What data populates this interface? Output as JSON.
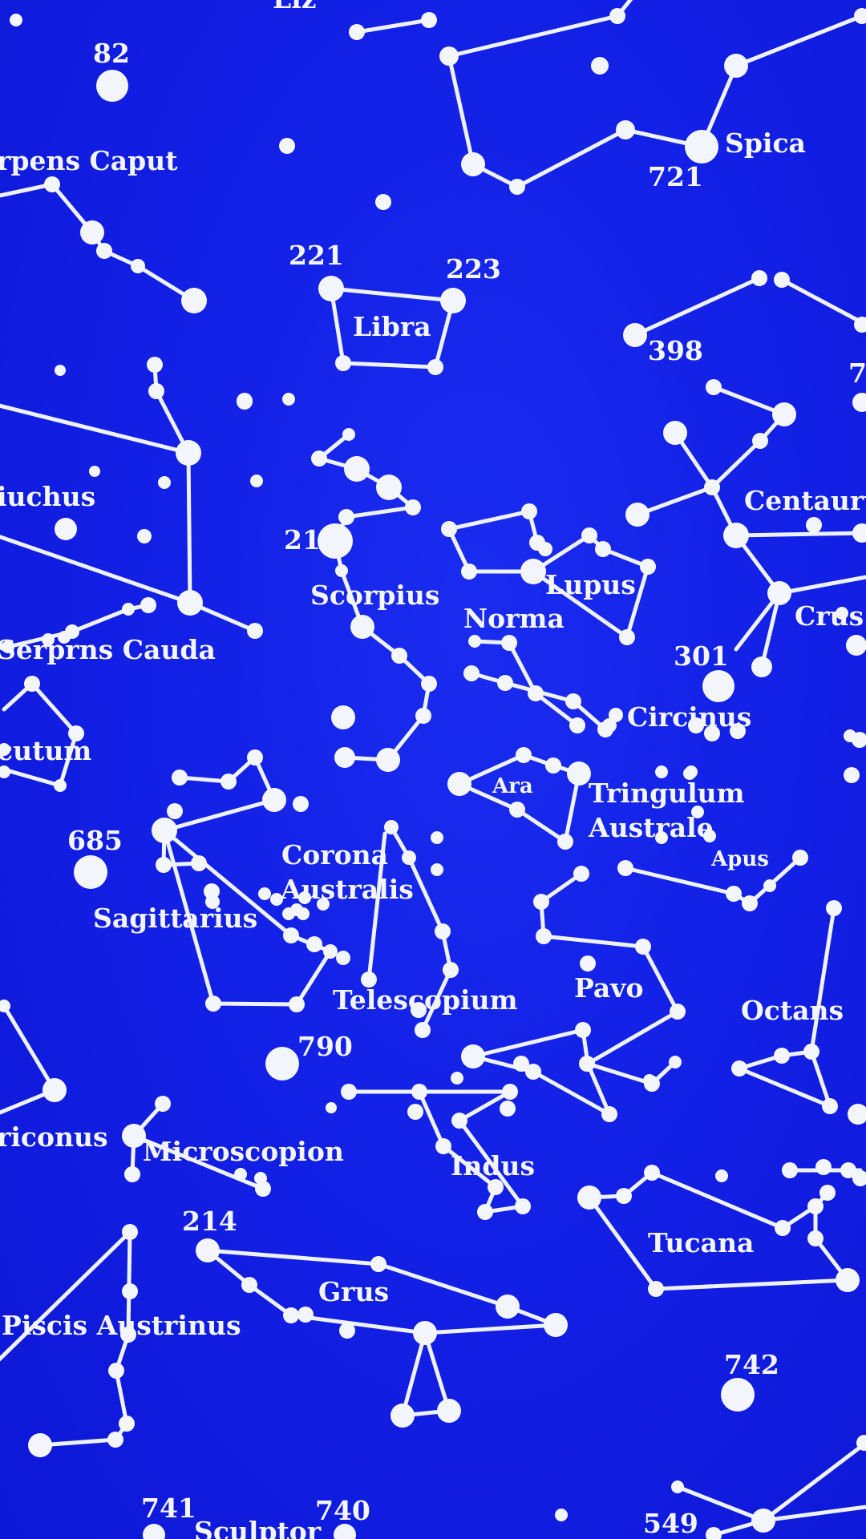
{
  "map": {
    "background_color": "#1320e6",
    "ink_color": "#f4f6ff",
    "constellation_labels": [
      {
        "id": "serpens-caput",
        "text": "rpens Caput"
      },
      {
        "id": "spica",
        "text": "Spica"
      },
      {
        "id": "libra",
        "text": "Libra"
      },
      {
        "id": "ophiuchus",
        "text": "iuchus"
      },
      {
        "id": "centaurus",
        "text": "Centauru"
      },
      {
        "id": "scorpius",
        "text": "Scorpius"
      },
      {
        "id": "lupus",
        "text": "Lupus"
      },
      {
        "id": "norma",
        "text": "Norma"
      },
      {
        "id": "crus",
        "text": "Crus"
      },
      {
        "id": "serpens-cauda",
        "text": "Serprns Cauda"
      },
      {
        "id": "circinus",
        "text": "Circinus"
      },
      {
        "id": "scutum",
        "text": "cutum"
      },
      {
        "id": "ara",
        "text": "Ara"
      },
      {
        "id": "tringulum",
        "text": "Tringulum"
      },
      {
        "id": "australe",
        "text": "Australe"
      },
      {
        "id": "corona",
        "text": "Corona"
      },
      {
        "id": "australis",
        "text": "Australis"
      },
      {
        "id": "apus",
        "text": "Apus"
      },
      {
        "id": "sagittarius",
        "text": "Sagittarius"
      },
      {
        "id": "telescopium",
        "text": "Telescopium"
      },
      {
        "id": "pavo",
        "text": "Pavo"
      },
      {
        "id": "octans",
        "text": "Octans"
      },
      {
        "id": "capricornus",
        "text": "riconus"
      },
      {
        "id": "microscopion",
        "text": "Microscopion"
      },
      {
        "id": "indus",
        "text": "Indus"
      },
      {
        "id": "tucana",
        "text": "Tucana"
      },
      {
        "id": "grus",
        "text": "Grus"
      },
      {
        "id": "piscis-austrinus",
        "text": "Piscis Austrinus"
      },
      {
        "id": "sculptor",
        "text": "Sculptor"
      },
      {
        "id": "top-cut",
        "text": "Liz"
      }
    ],
    "star_numbers": [
      {
        "id": "n82",
        "text": "82"
      },
      {
        "id": "n721",
        "text": "721"
      },
      {
        "id": "n221",
        "text": "221"
      },
      {
        "id": "n223",
        "text": "223"
      },
      {
        "id": "n398",
        "text": "398"
      },
      {
        "id": "n7",
        "text": "7"
      },
      {
        "id": "n21",
        "text": "21"
      },
      {
        "id": "n301",
        "text": "301"
      },
      {
        "id": "n685",
        "text": "685"
      },
      {
        "id": "n790",
        "text": "790"
      },
      {
        "id": "n214",
        "text": "214"
      },
      {
        "id": "n742",
        "text": "742"
      },
      {
        "id": "n741",
        "text": "741"
      },
      {
        "id": "n740",
        "text": "740"
      },
      {
        "id": "n549",
        "text": "549"
      }
    ]
  }
}
